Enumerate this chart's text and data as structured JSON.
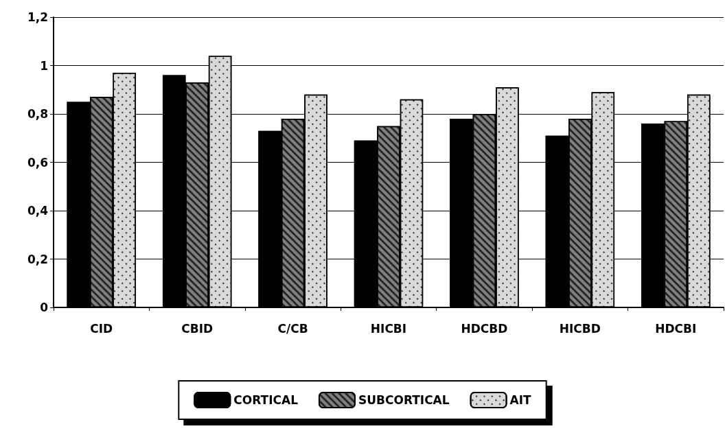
{
  "chart_data": {
    "type": "bar",
    "categories": [
      "CID",
      "CBID",
      "C/CB",
      "HICBI",
      "HDCBD",
      "HICBD",
      "HDCBI"
    ],
    "series": [
      {
        "name": "CORTICAL",
        "color": "#000000",
        "values": [
          0.85,
          0.96,
          0.73,
          0.69,
          0.78,
          0.71,
          0.76
        ]
      },
      {
        "name": "SUBCORTICAL",
        "color": "#808080",
        "values": [
          0.87,
          0.93,
          0.78,
          0.75,
          0.8,
          0.78,
          0.77
        ]
      },
      {
        "name": "AIT",
        "color": "#d9d9d9",
        "values": [
          0.97,
          1.04,
          0.88,
          0.86,
          0.91,
          0.89,
          0.88
        ]
      }
    ],
    "ylim": [
      0,
      1.2
    ],
    "yticks": [
      0,
      {
        "value": 0.2,
        "label": "0,2"
      },
      {
        "value": 0.4,
        "label": "0,4"
      },
      {
        "value": 0.6,
        "label": "0,6"
      },
      {
        "value": 0.8,
        "label": "0,8"
      },
      1,
      {
        "value": 1.2,
        "label": "1,2"
      }
    ],
    "grid": "y",
    "legend": "bottom"
  }
}
